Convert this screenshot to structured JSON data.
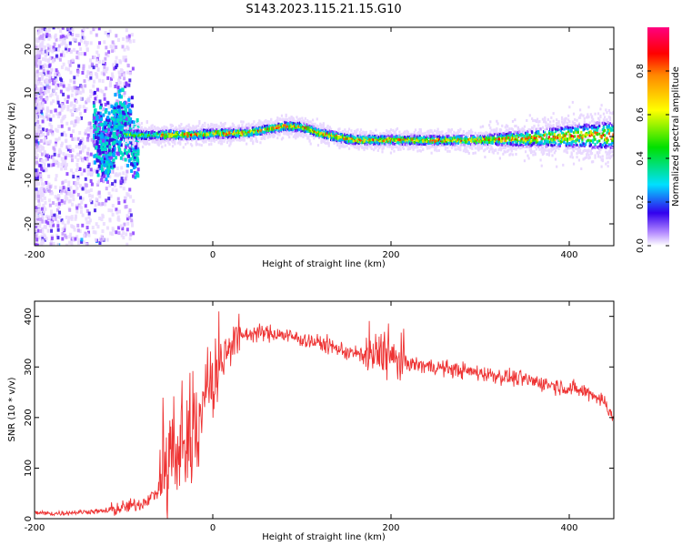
{
  "title": "S143.2023.115.21.15.G10",
  "chart_data": [
    {
      "type": "heatmap",
      "xlabel": "Height of straight line (km)",
      "ylabel": "Frequency (Hz)",
      "xlim": [
        -200,
        450
      ],
      "ylim": [
        -25,
        25
      ],
      "x_ticks": [
        -200,
        0,
        200,
        400
      ],
      "y_ticks": [
        -20,
        -10,
        0,
        10,
        20
      ],
      "colorbar": {
        "label": "Normalized spectral amplitude",
        "range": [
          0,
          1
        ],
        "ticks": [
          0.0,
          0.2,
          0.4,
          0.6,
          0.8
        ],
        "colormap": [
          "#ffffff",
          "#a64dff",
          "#0000e6",
          "#00d5ff",
          "#00dd00",
          "#ffff00",
          "#ff0000",
          "#ff0080"
        ]
      },
      "dominant_frequency_track": {
        "x": [
          -100,
          -80,
          -60,
          -40,
          -20,
          0,
          20,
          40,
          60,
          80,
          100,
          120,
          140,
          160,
          200,
          250,
          300,
          350,
          400,
          450
        ],
        "y": [
          0.5,
          0.3,
          0.3,
          0.4,
          0.4,
          0.7,
          0.7,
          0.9,
          1.6,
          2.4,
          2.1,
          0.7,
          -0.2,
          -0.8,
          -0.8,
          -0.9,
          -0.8,
          -0.5,
          0.0,
          0.3
        ]
      }
    },
    {
      "type": "line",
      "xlabel": "Height of straight line (km)",
      "ylabel": "SNR (10 * v/v)",
      "xlim": [
        -200,
        450
      ],
      "ylim": [
        0,
        430
      ],
      "x_ticks": [
        -200,
        0,
        200,
        400
      ],
      "y_ticks": [
        0,
        100,
        200,
        300,
        400
      ],
      "series": [
        {
          "color": "#ee3333",
          "x": [
            -200,
            -180,
            -160,
            -140,
            -120,
            -100,
            -80,
            -60,
            -40,
            -20,
            -10,
            0,
            10,
            20,
            30,
            50,
            75,
            100,
            125,
            150,
            175,
            190,
            200,
            225,
            250,
            300,
            350,
            400,
            425,
            440,
            450
          ],
          "y": [
            12,
            10,
            12,
            14,
            15,
            22,
            30,
            55,
            100,
            160,
            220,
            260,
            310,
            350,
            362,
            368,
            365,
            355,
            345,
            330,
            320,
            325,
            318,
            305,
            300,
            288,
            275,
            258,
            248,
            230,
            200
          ]
        }
      ]
    }
  ]
}
